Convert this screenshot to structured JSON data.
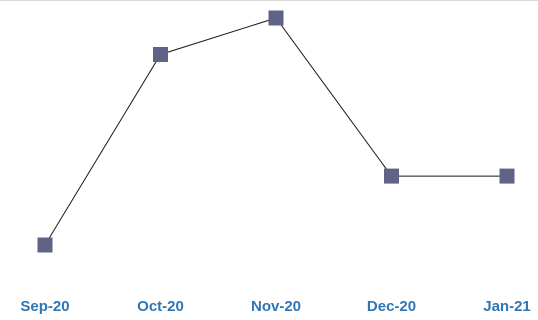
{
  "chart_data": {
    "type": "line",
    "title": "",
    "xlabel": "",
    "ylabel": "",
    "categories": [
      "Sep-20",
      "Oct-20",
      "Nov-20",
      "Dec-20",
      "Jan-21"
    ],
    "series": [
      {
        "values": [
          3.5,
          8.2,
          9.1,
          5.2,
          5.2
        ]
      }
    ],
    "ylim": [
      2.5,
      9.5
    ],
    "grid": false,
    "legend": "none",
    "colors": {
      "line": "#1a1a1a",
      "marker": "#5f6487",
      "tick_label": "#2e75b6",
      "top_border": "#d9d9d9"
    }
  }
}
